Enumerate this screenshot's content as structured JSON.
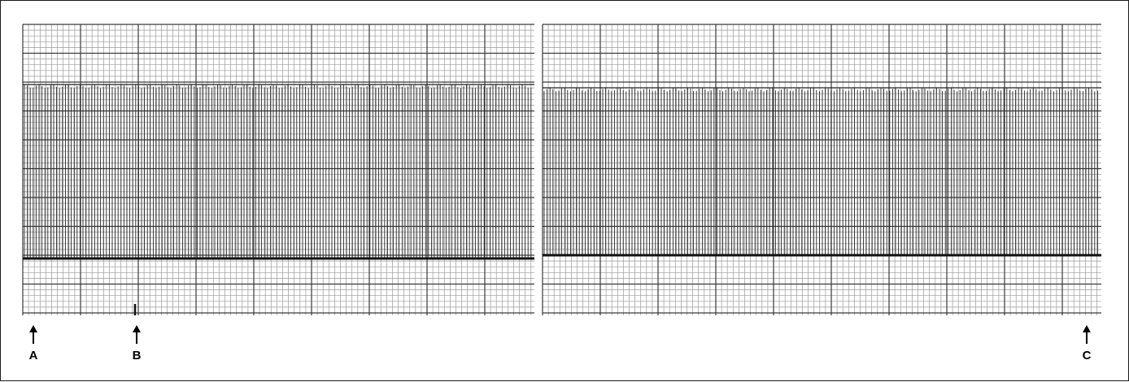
{
  "figure": {
    "markers": [
      {
        "id": "a",
        "label": "A"
      },
      {
        "id": "b",
        "label": "B"
      },
      {
        "id": "c",
        "label": "C"
      }
    ],
    "colors": {
      "grid_fine": "#9a9a9a",
      "grid_major": "#3a3a3a",
      "trace": "#222222",
      "baseline": "#111111"
    }
  }
}
